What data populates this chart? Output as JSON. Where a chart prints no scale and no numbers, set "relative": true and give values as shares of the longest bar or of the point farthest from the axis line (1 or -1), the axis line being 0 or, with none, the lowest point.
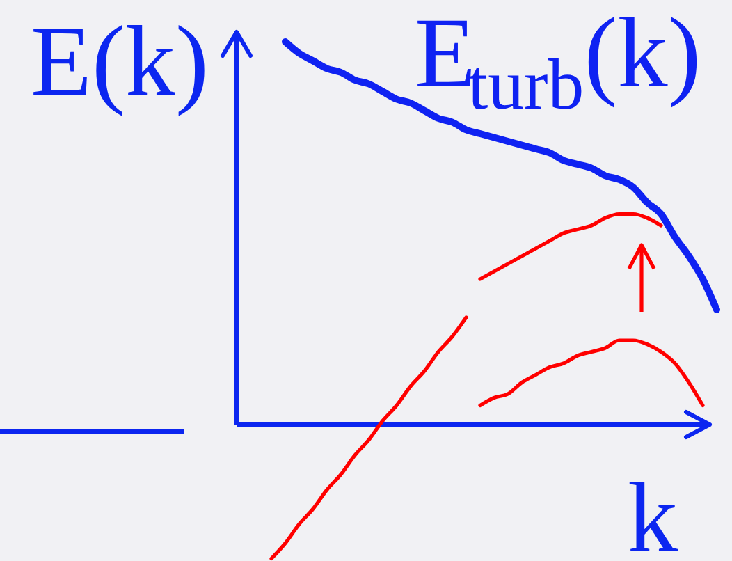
{
  "chart_data": {
    "type": "line",
    "relative": true,
    "ylabel": "E(k)",
    "xlabel": "k",
    "categories": [
      null,
      null,
      null,
      null,
      null,
      null,
      null,
      null,
      null,
      null,
      null,
      null,
      null,
      null,
      null,
      null,
      null,
      null,
      null,
      null,
      null,
      null,
      null,
      null,
      null,
      null,
      null,
      null,
      null,
      null,
      null,
      null,
      null,
      null,
      null,
      null
    ],
    "ref_lines": [
      {
        "axis": "y",
        "value": 0,
        "color": "#0c26f0"
      }
    ],
    "series": [
      {
        "color": "#ff0000",
        "values": [
          null,
          null,
          null,
          -0.35,
          -0.31,
          -0.26,
          -0.22,
          -0.17,
          -0.13,
          -0.08,
          -0.04,
          0.01,
          0.05,
          0.1,
          0.14,
          0.19,
          0.23,
          0.28,
          null,
          null,
          null,
          null,
          null,
          null,
          null,
          null,
          null,
          null,
          null,
          null,
          null,
          null,
          null,
          null,
          null,
          null
        ]
      },
      {
        "color": "#ff0000",
        "values": [
          null,
          null,
          null,
          null,
          null,
          null,
          null,
          null,
          null,
          null,
          null,
          null,
          null,
          null,
          null,
          null,
          null,
          null,
          0.05,
          0.07,
          0.08,
          0.11,
          0.13,
          0.15,
          0.16,
          0.18,
          0.19,
          0.2,
          0.22,
          0.22,
          0.21,
          0.19,
          0.16,
          0.11,
          0.05,
          null
        ]
      },
      {
        "color": "#ff0000",
        "values": [
          null,
          null,
          null,
          null,
          null,
          null,
          null,
          null,
          null,
          null,
          null,
          null,
          null,
          null,
          null,
          null,
          null,
          null,
          0.38,
          0.4,
          0.42,
          0.44,
          0.46,
          0.48,
          0.5,
          0.51,
          0.52,
          0.54,
          0.55,
          0.55,
          0.54,
          0.52,
          null,
          null,
          null,
          null
        ]
      },
      {
        "name": "E$_{turb}$(k)",
        "color": "#0f22f2",
        "values": [
          null,
          null,
          null,
          null,
          1.0,
          0.97,
          0.95,
          0.93,
          0.92,
          0.9,
          0.89,
          0.87,
          0.85,
          0.84,
          0.82,
          0.8,
          0.79,
          0.77,
          0.76,
          0.75,
          0.74,
          0.73,
          0.72,
          0.71,
          0.69,
          0.68,
          0.67,
          0.65,
          0.64,
          0.62,
          0.58,
          0.55,
          0.49,
          0.44,
          0.38,
          0.3
        ]
      }
    ]
  }
}
